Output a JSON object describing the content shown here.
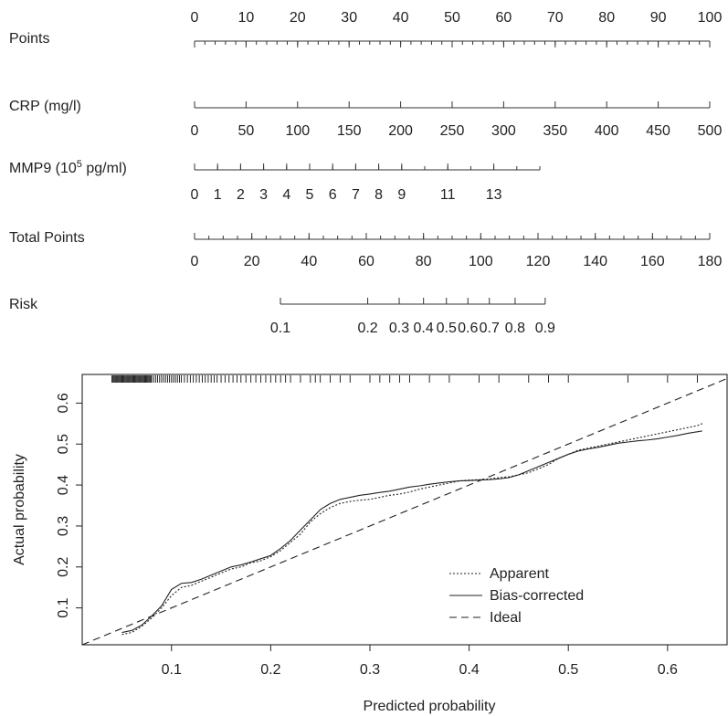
{
  "chart_data": [
    {
      "type": "nomogram",
      "rows": [
        {
          "id": "points",
          "label": "Points",
          "label_sup": "",
          "label_suffix": "",
          "range": [
            0,
            100
          ],
          "labels": [
            0,
            10,
            20,
            30,
            40,
            50,
            60,
            70,
            80,
            90,
            100
          ],
          "minor_step": 2,
          "tick_side": "below",
          "label_side": "above"
        },
        {
          "id": "crp",
          "label": "CRP (mg/l)",
          "label_sup": "",
          "label_suffix": "",
          "range": [
            0,
            500
          ],
          "labels": [
            0,
            50,
            100,
            150,
            200,
            250,
            300,
            350,
            400,
            450,
            500
          ],
          "minor_step": 0,
          "tick_side": "below",
          "label_side": "below"
        },
        {
          "id": "mmp9",
          "label": "MMP9 (10",
          "label_sup": "5",
          "label_suffix": " pg/ml)",
          "range": [
            0,
            15
          ],
          "labels": [
            0,
            1,
            2,
            3,
            4,
            5,
            6,
            7,
            8,
            9,
            11,
            13
          ],
          "ticks": [
            0,
            1,
            2,
            3,
            4,
            5,
            6,
            7,
            8,
            9,
            10,
            11,
            12,
            13,
            14,
            15
          ],
          "tick_side": "up",
          "label_side": "below"
        },
        {
          "id": "total",
          "label": "Total Points",
          "label_sup": "",
          "label_suffix": "",
          "range": [
            0,
            180
          ],
          "labels": [
            0,
            20,
            40,
            60,
            80,
            100,
            120,
            140,
            160,
            180
          ],
          "minor_step": 5,
          "tick_side": "below",
          "label_side": "below"
        },
        {
          "id": "risk",
          "label": "Risk",
          "label_sup": "",
          "label_suffix": "",
          "range": [
            0.1,
            0.9
          ],
          "labels": [
            "0.1",
            "0.2",
            "0.3",
            "0.4",
            "0.5",
            "0.6",
            "0.7",
            "0.8",
            "0.9"
          ],
          "label_total_points": [
            30,
            60.5,
            71.5,
            80,
            88,
            95.5,
            103,
            112,
            122.5
          ],
          "risk_total_range": [
            30,
            122.5
          ],
          "tick_side": "below",
          "label_side": "below"
        }
      ]
    },
    {
      "type": "line",
      "xlabel": "Predicted probability",
      "ylabel": "Actual probability",
      "xlim": [
        0.01,
        0.66
      ],
      "ylim": [
        0.01,
        0.67
      ],
      "xticks": [
        "0.1",
        "0.2",
        "0.3",
        "0.4",
        "0.5",
        "0.6"
      ],
      "yticks": [
        "0.1",
        "0.2",
        "0.3",
        "0.4",
        "0.5",
        "0.6"
      ],
      "legend_position": "bottom-right",
      "rug_color": "#111111",
      "rug": [
        0.04,
        0.041,
        0.042,
        0.043,
        0.044,
        0.045,
        0.046,
        0.047,
        0.048,
        0.049,
        0.05,
        0.051,
        0.052,
        0.053,
        0.054,
        0.055,
        0.056,
        0.057,
        0.058,
        0.059,
        0.06,
        0.061,
        0.062,
        0.063,
        0.064,
        0.065,
        0.066,
        0.067,
        0.068,
        0.069,
        0.07,
        0.071,
        0.072,
        0.073,
        0.074,
        0.075,
        0.076,
        0.077,
        0.078,
        0.079,
        0.08,
        0.082,
        0.084,
        0.086,
        0.088,
        0.09,
        0.092,
        0.094,
        0.096,
        0.098,
        0.1,
        0.102,
        0.104,
        0.106,
        0.108,
        0.11,
        0.113,
        0.116,
        0.119,
        0.122,
        0.125,
        0.128,
        0.131,
        0.134,
        0.137,
        0.14,
        0.143,
        0.146,
        0.15,
        0.154,
        0.158,
        0.162,
        0.166,
        0.17,
        0.175,
        0.18,
        0.185,
        0.19,
        0.195,
        0.2,
        0.205,
        0.21,
        0.215,
        0.22,
        0.23,
        0.24,
        0.245,
        0.25,
        0.26,
        0.27,
        0.28,
        0.3,
        0.31,
        0.32,
        0.33,
        0.34,
        0.36,
        0.38,
        0.41,
        0.43,
        0.46,
        0.48,
        0.5,
        0.56,
        0.6,
        0.63
      ],
      "series": [
        {
          "name": "Apparent",
          "dash": "2,2",
          "x": [
            0.05,
            0.06,
            0.07,
            0.08,
            0.09,
            0.1,
            0.11,
            0.12,
            0.13,
            0.14,
            0.15,
            0.16,
            0.17,
            0.18,
            0.19,
            0.2,
            0.21,
            0.22,
            0.23,
            0.24,
            0.25,
            0.26,
            0.27,
            0.28,
            0.29,
            0.3,
            0.31,
            0.32,
            0.33,
            0.34,
            0.35,
            0.36,
            0.37,
            0.38,
            0.39,
            0.4,
            0.41,
            0.42,
            0.43,
            0.44,
            0.45,
            0.46,
            0.47,
            0.48,
            0.49,
            0.5,
            0.51,
            0.52,
            0.53,
            0.54,
            0.55,
            0.56,
            0.57,
            0.58,
            0.59,
            0.6,
            0.61,
            0.62,
            0.63,
            0.635
          ],
          "y": [
            0.035,
            0.04,
            0.055,
            0.075,
            0.1,
            0.13,
            0.15,
            0.155,
            0.165,
            0.175,
            0.185,
            0.195,
            0.2,
            0.21,
            0.215,
            0.225,
            0.24,
            0.26,
            0.28,
            0.31,
            0.33,
            0.345,
            0.355,
            0.36,
            0.363,
            0.365,
            0.37,
            0.375,
            0.378,
            0.383,
            0.39,
            0.395,
            0.4,
            0.405,
            0.41,
            0.412,
            0.413,
            0.415,
            0.418,
            0.42,
            0.425,
            0.43,
            0.44,
            0.45,
            0.465,
            0.475,
            0.485,
            0.49,
            0.495,
            0.5,
            0.505,
            0.51,
            0.515,
            0.52,
            0.525,
            0.53,
            0.535,
            0.54,
            0.545,
            0.55
          ]
        },
        {
          "name": "Bias-corrected",
          "dash": "",
          "x": [
            0.05,
            0.06,
            0.07,
            0.08,
            0.09,
            0.1,
            0.11,
            0.12,
            0.13,
            0.14,
            0.15,
            0.16,
            0.17,
            0.18,
            0.19,
            0.2,
            0.21,
            0.22,
            0.23,
            0.24,
            0.25,
            0.26,
            0.27,
            0.28,
            0.29,
            0.3,
            0.31,
            0.32,
            0.33,
            0.34,
            0.35,
            0.36,
            0.37,
            0.38,
            0.39,
            0.4,
            0.41,
            0.42,
            0.43,
            0.44,
            0.45,
            0.46,
            0.47,
            0.48,
            0.49,
            0.5,
            0.51,
            0.52,
            0.53,
            0.54,
            0.55,
            0.56,
            0.57,
            0.58,
            0.59,
            0.6,
            0.61,
            0.62,
            0.63,
            0.635
          ],
          "y": [
            0.04,
            0.045,
            0.058,
            0.08,
            0.105,
            0.145,
            0.16,
            0.162,
            0.17,
            0.18,
            0.19,
            0.2,
            0.205,
            0.212,
            0.22,
            0.228,
            0.245,
            0.265,
            0.29,
            0.315,
            0.34,
            0.355,
            0.365,
            0.37,
            0.375,
            0.378,
            0.382,
            0.385,
            0.39,
            0.395,
            0.398,
            0.402,
            0.405,
            0.408,
            0.41,
            0.411,
            0.412,
            0.413,
            0.415,
            0.418,
            0.425,
            0.435,
            0.445,
            0.455,
            0.465,
            0.475,
            0.483,
            0.488,
            0.492,
            0.497,
            0.502,
            0.505,
            0.508,
            0.51,
            0.513,
            0.517,
            0.521,
            0.526,
            0.53,
            0.532
          ]
        },
        {
          "name": "Ideal",
          "dash": "8,5",
          "x": [
            0.01,
            0.66
          ],
          "y": [
            0.01,
            0.66
          ]
        }
      ]
    }
  ]
}
